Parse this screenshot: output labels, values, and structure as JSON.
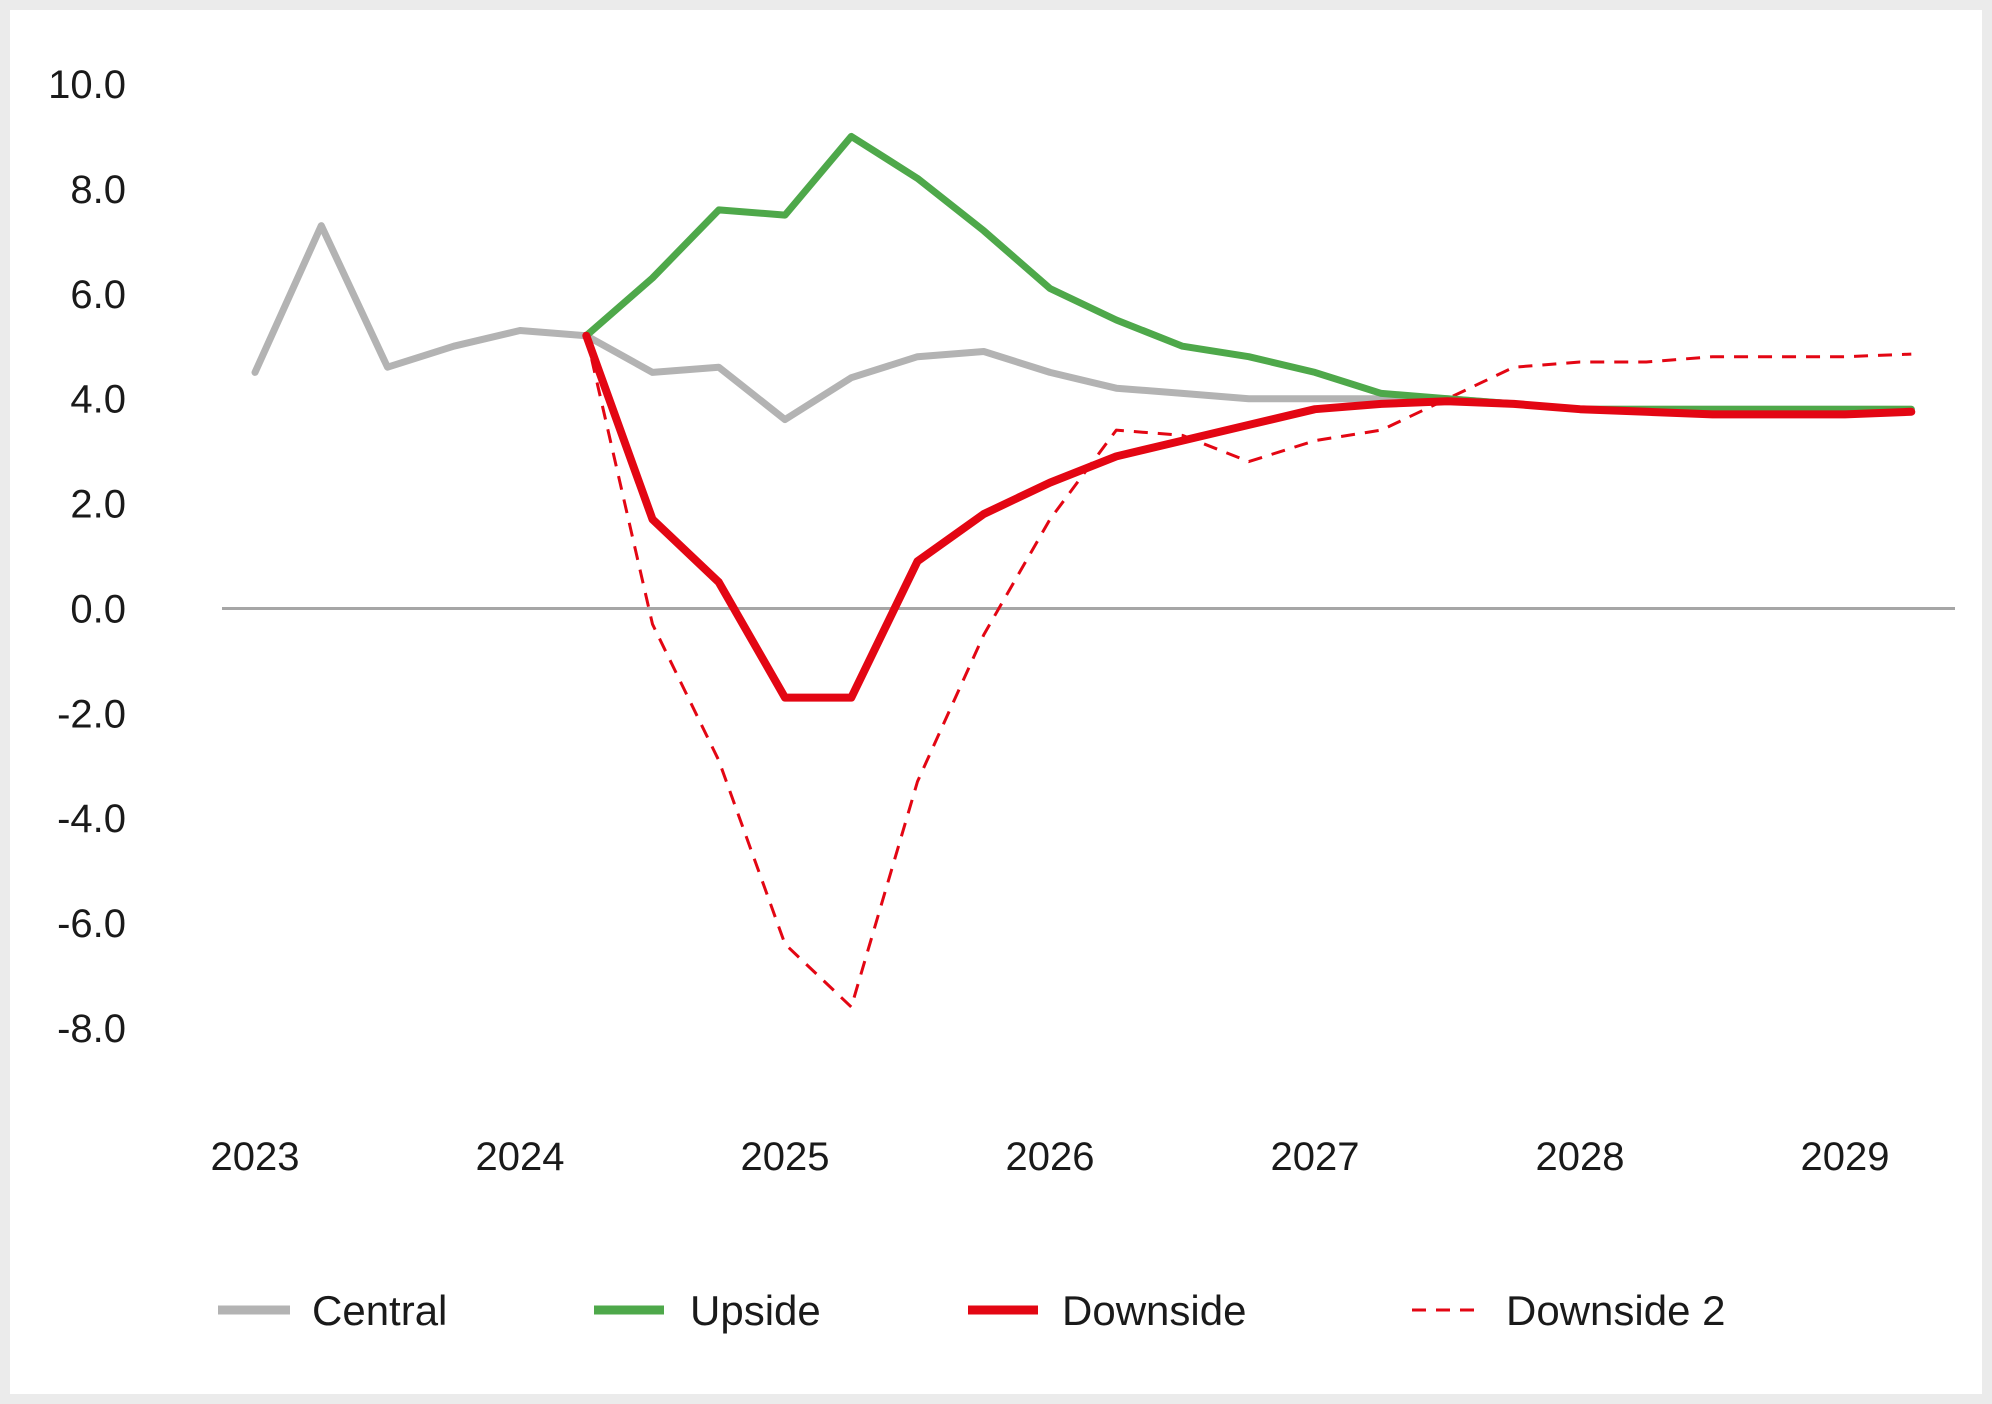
{
  "chart_data": {
    "type": "line",
    "title": "",
    "xlabel": "",
    "ylabel": "",
    "ylim": [
      -8.0,
      10.0
    ],
    "y_ticks": [
      "10.0",
      "8.0",
      "6.0",
      "4.0",
      "2.0",
      "0.0",
      "-2.0",
      "-4.0",
      "-6.0",
      "-8.0"
    ],
    "y_tick_values": [
      10,
      8,
      6,
      4,
      2,
      0,
      -2,
      -4,
      -6,
      -8
    ],
    "x_tick_labels": [
      "2023",
      "2024",
      "2025",
      "2026",
      "2027",
      "2028",
      "2029"
    ],
    "x_tick_values": [
      2023,
      2024,
      2025,
      2026,
      2027,
      2028,
      2029
    ],
    "xlim": [
      2022.9,
      2029.5
    ],
    "zero_line": true,
    "grid": false,
    "legend_position": "bottom",
    "series": [
      {
        "name": "Central",
        "color": "#b3b3b3",
        "style": "solid",
        "x": [
          2023.0,
          2023.25,
          2023.5,
          2023.75,
          2024.0,
          2024.25,
          2024.5,
          2024.75,
          2025.0,
          2025.25,
          2025.5,
          2025.75,
          2026.0,
          2026.25,
          2026.5,
          2026.75,
          2027.0,
          2027.25,
          2027.5,
          2027.75,
          2028.0,
          2028.25,
          2028.5,
          2028.75,
          2029.0,
          2029.25
        ],
        "values": [
          4.5,
          7.3,
          4.6,
          5.0,
          5.3,
          5.2,
          4.5,
          4.6,
          3.6,
          4.4,
          4.8,
          4.9,
          4.5,
          4.2,
          4.1,
          4.0,
          4.0,
          4.0,
          4.0,
          3.9,
          3.8,
          3.8,
          3.8,
          3.8,
          3.8,
          3.8
        ]
      },
      {
        "name": "Upside",
        "color": "#4ea84a",
        "style": "solid",
        "x": [
          2024.25,
          2024.5,
          2024.75,
          2025.0,
          2025.25,
          2025.5,
          2025.75,
          2026.0,
          2026.25,
          2026.5,
          2026.75,
          2027.0,
          2027.25,
          2027.5,
          2027.75,
          2028.0,
          2028.25,
          2028.5,
          2028.75,
          2029.0,
          2029.25
        ],
        "values": [
          5.2,
          6.3,
          7.6,
          7.5,
          9.0,
          8.2,
          7.2,
          6.1,
          5.5,
          5.0,
          4.8,
          4.5,
          4.1,
          4.0,
          3.9,
          3.8,
          3.8,
          3.8,
          3.8,
          3.8,
          3.8
        ]
      },
      {
        "name": "Downside",
        "color": "#e30613",
        "style": "solid",
        "x": [
          2024.25,
          2024.5,
          2024.75,
          2025.0,
          2025.25,
          2025.5,
          2025.75,
          2026.0,
          2026.25,
          2026.5,
          2026.75,
          2027.0,
          2027.25,
          2027.5,
          2027.75,
          2028.0,
          2028.25,
          2028.5,
          2028.75,
          2029.0,
          2029.25
        ],
        "values": [
          5.2,
          1.7,
          0.5,
          -1.7,
          -1.7,
          0.9,
          1.8,
          2.4,
          2.9,
          3.2,
          3.5,
          3.8,
          3.9,
          3.95,
          3.9,
          3.8,
          3.75,
          3.7,
          3.7,
          3.7,
          3.75
        ]
      },
      {
        "name": "Downside 2",
        "color": "#e30613",
        "style": "dashed",
        "x": [
          2024.25,
          2024.5,
          2024.75,
          2025.0,
          2025.25,
          2025.5,
          2025.75,
          2026.0,
          2026.25,
          2026.5,
          2026.75,
          2027.0,
          2027.25,
          2027.5,
          2027.75,
          2028.0,
          2028.25,
          2028.5,
          2028.75,
          2029.0,
          2029.25
        ],
        "values": [
          5.2,
          -0.3,
          -2.9,
          -6.4,
          -7.6,
          -3.3,
          -0.5,
          1.7,
          3.4,
          3.3,
          2.8,
          3.2,
          3.4,
          4.0,
          4.6,
          4.7,
          4.7,
          4.8,
          4.8,
          4.8,
          4.85
        ]
      }
    ]
  }
}
